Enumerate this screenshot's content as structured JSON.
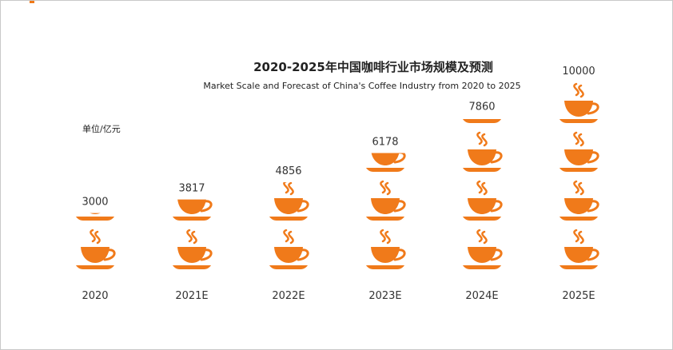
{
  "chart_data": {
    "type": "bar",
    "title": "2020-2025年中国咖啡行业市场规模及预测",
    "subtitle": "Market Scale and Forecast of China's Coffee Industry from 2020 to 2025",
    "unit_label": "单位/亿元",
    "categories": [
      "2020",
      "2021E",
      "2022E",
      "2023E",
      "2024E",
      "2025E"
    ],
    "values": [
      3000,
      3817,
      4856,
      6178,
      7860,
      10000
    ],
    "cup_value": 2500,
    "grid": false,
    "icon": "coffee-cup-icon",
    "colors": {
      "cup": "#f07a1a",
      "text": "#333333"
    }
  }
}
